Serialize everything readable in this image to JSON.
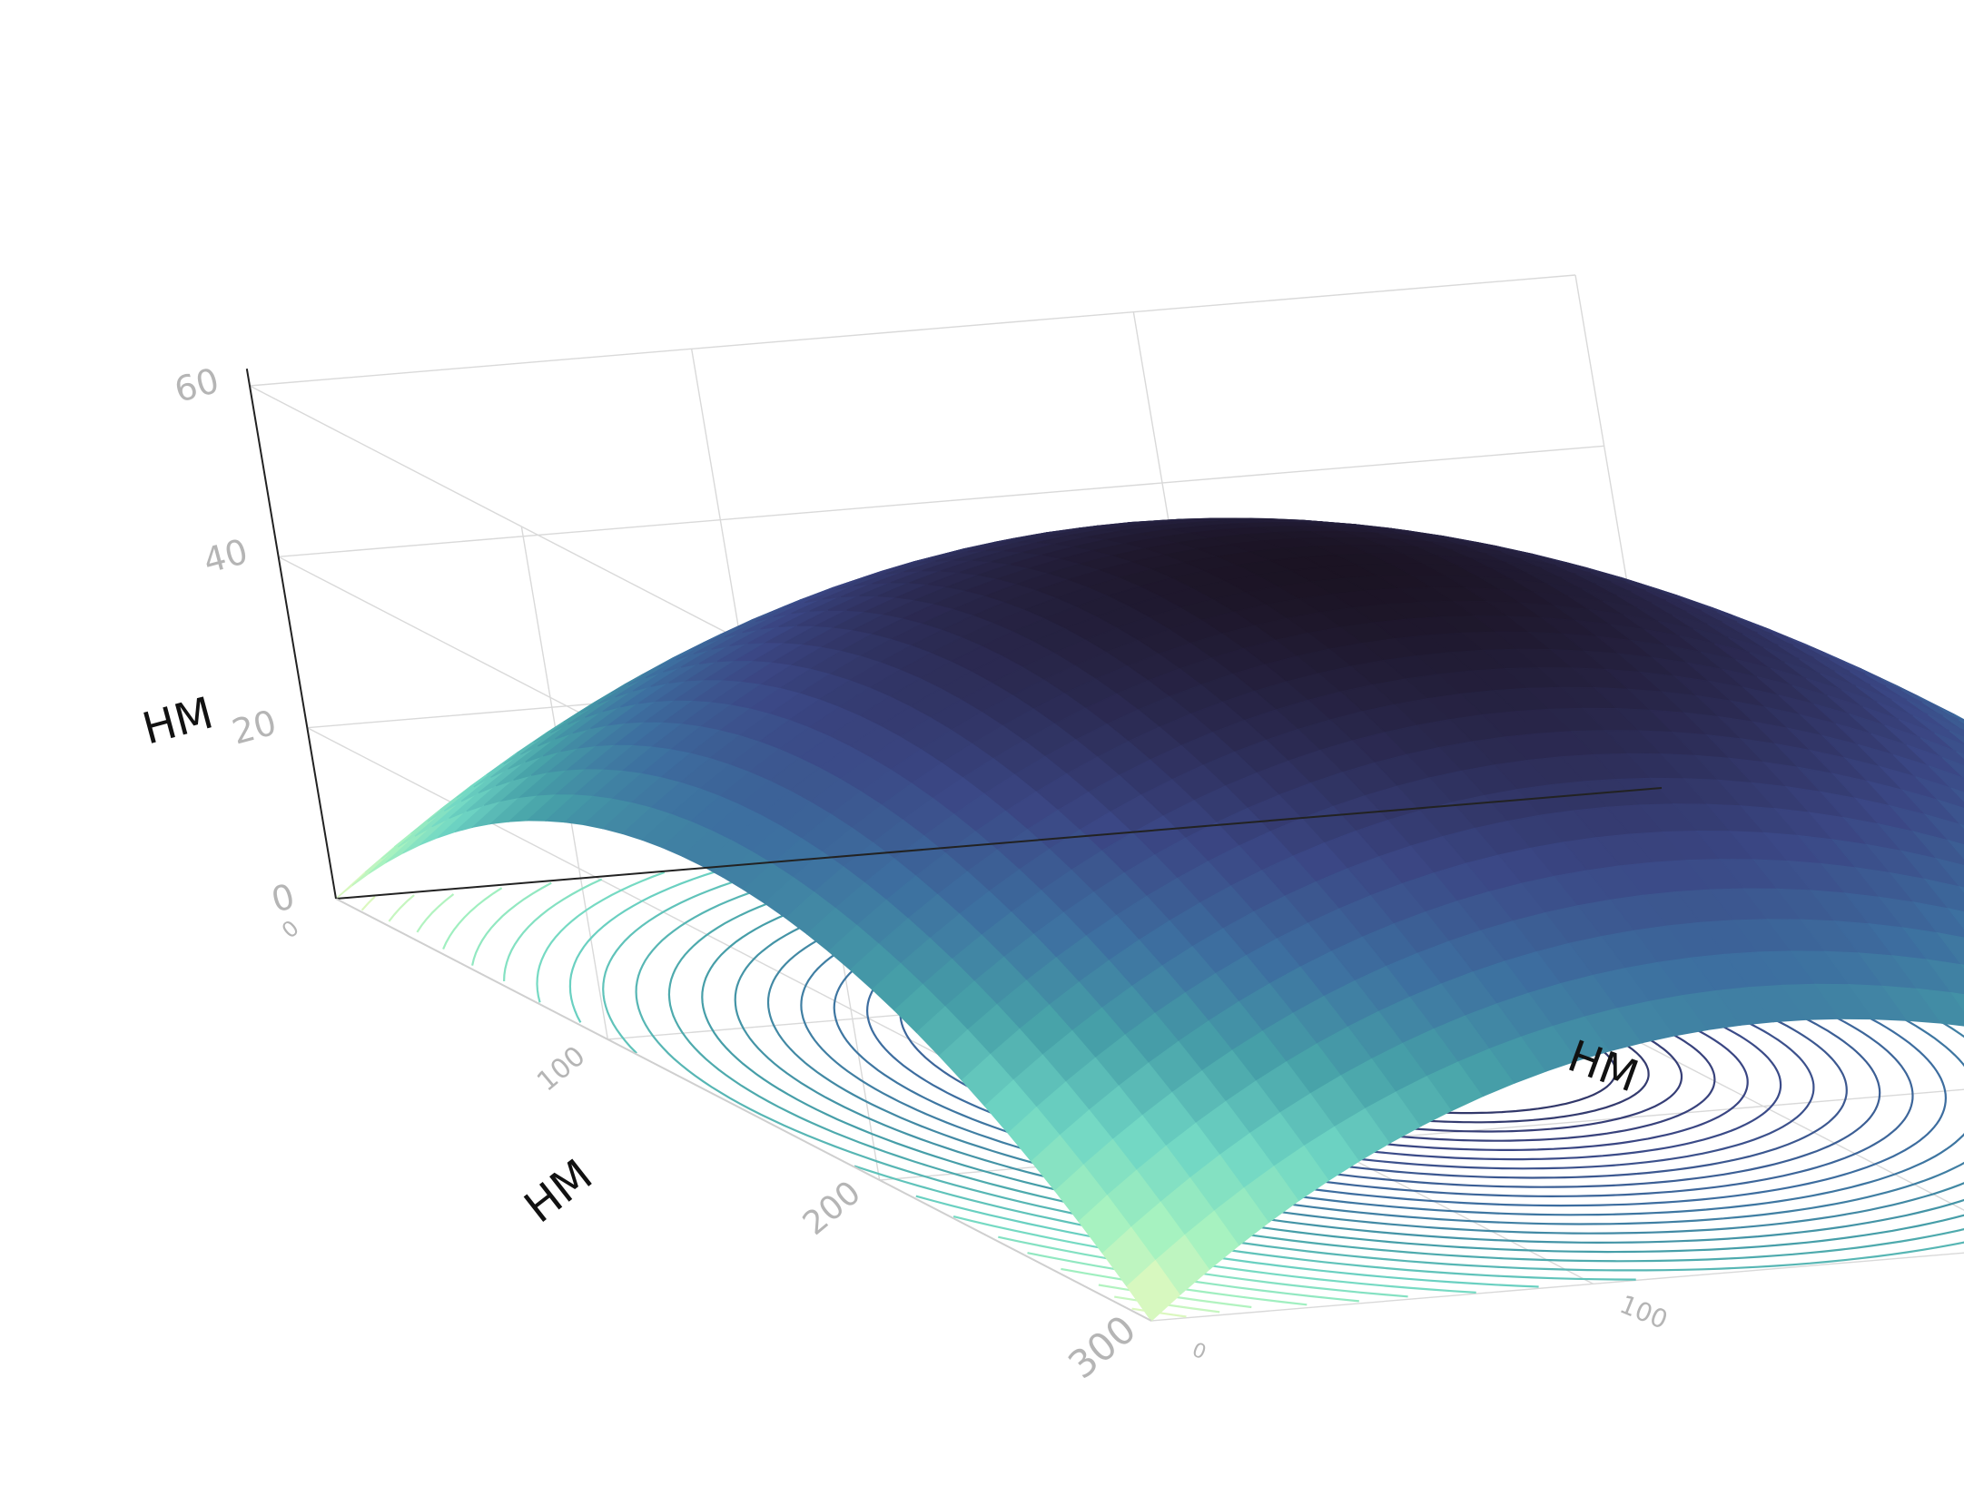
{
  "chart_data": {
    "type": "surface3d",
    "x_axis": {
      "title": "HM",
      "ticks": [
        "0",
        "100",
        "200",
        "300"
      ],
      "range": [
        0,
        300
      ]
    },
    "y_axis": {
      "title": "HM",
      "ticks": [
        "0",
        "100",
        "200",
        "300"
      ],
      "range": [
        0,
        300
      ]
    },
    "z_axis": {
      "title": "HM",
      "ticks": [
        "0",
        "20",
        "40",
        "60"
      ],
      "range": [
        0,
        60
      ]
    },
    "surface": {
      "shape": "paraboloid dome peaking at grid center",
      "peak": {
        "x": 150,
        "y": 150,
        "z": 57
      },
      "corner_height": 0,
      "colorscale": [
        "#1b1323",
        "#2b2a52",
        "#3b4785",
        "#3d6fa0",
        "#46a0a8",
        "#6fd6c4",
        "#a6f2c0",
        "#f0fbbf"
      ]
    },
    "contours": {
      "projected_on": "floor",
      "levels": 28,
      "same_colorscale": true
    },
    "grid": true
  }
}
